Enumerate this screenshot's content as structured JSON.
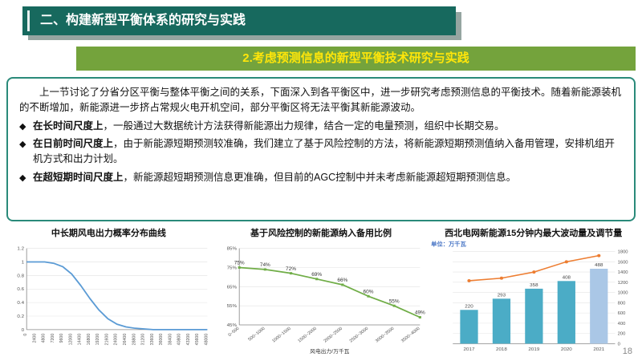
{
  "page": {
    "number": "18"
  },
  "header": {
    "title": "二、构建新型平衡体系的研究与实践"
  },
  "banner": {
    "title": "2.考虑预测信息的新型平衡技术研究与实践"
  },
  "content": {
    "bullet_marker": "◆",
    "intro": "上一节讨论了分省分区平衡与整体平衡之间的关系，下面深入到各平衡区中，进一步研究考虑预测信息的平衡技术。随着新能源装机的不断增加，新能源进一步挤占常规火电开机空间，部分平衡区将无法平衡其新能源波动。",
    "bullets": [
      {
        "bold": "在长时间尺度上",
        "rest": "，一般通过大数据统计方法获得新能源出力规律，结合一定的电量预测，组织中长期交易。"
      },
      {
        "bold": "在日前时间尺度上",
        "rest": "，由于新能源短期预测较准确，我们建立了基于风险控制的方法，将新能源短期预测值纳入备用管理，安排机组开机方式和出力计划。"
      },
      {
        "bold": "在超短期时间尺度上",
        "rest": "，新能源超短期预测信息更准确，但目前的AGC控制中并未考虑新能源超短期预测信息。"
      }
    ]
  },
  "theme": {
    "header_bg": "#17695e",
    "shadow": "#95a5a1",
    "banner_bg": "#74a33c",
    "banner_text": "#ffe60a",
    "box_border": "#2a8a7a",
    "page_bg": "#ffffff"
  },
  "chart_data": [
    {
      "type": "line",
      "title": "中长期风电出力概率分布曲线",
      "x": [
        0,
        2400,
        4800,
        7200,
        9600,
        12000,
        14400,
        16800,
        19200,
        21600,
        24000,
        26400,
        28800,
        31200,
        33600,
        36000,
        38400,
        40800,
        43200,
        45600,
        48000
      ],
      "values": [
        1,
        1,
        1,
        0.98,
        0.93,
        0.82,
        0.65,
        0.46,
        0.29,
        0.16,
        0.08,
        0.04,
        0.02,
        0.01,
        0,
        0,
        0,
        0,
        0,
        0,
        0
      ],
      "ylim": [
        0,
        1.2
      ],
      "yticks": [
        "0",
        "0.2",
        "0.4",
        "0.6",
        "0.8",
        "1",
        "1.2"
      ],
      "x_tick_rotation": 90,
      "grid": true,
      "line_color": "#5b9bd5"
    },
    {
      "type": "line",
      "title": "基于风险控制的新能源纳入备用比例",
      "categories": [
        "0~500",
        "500~1000",
        "1000~1500",
        "1500~2000",
        "2000~2500",
        "2500~3000",
        "3000~3500",
        "3500~4000"
      ],
      "values": [
        75,
        74,
        72,
        69,
        66,
        60,
        55,
        49
      ],
      "data_labels": [
        "75%",
        "74%",
        "72%",
        "69%",
        "66%",
        "60%",
        "55%",
        "49%"
      ],
      "xlabel": "风电出力/万千瓦",
      "ylim": [
        45,
        85
      ],
      "yticks": [
        "45%",
        "55%",
        "65%",
        "75%",
        "85%"
      ],
      "x_tick_rotation": 40,
      "grid": true,
      "show_markers": true,
      "line_color": "#70ad47"
    },
    {
      "type": "combo",
      "title": "西北电网新能源15分钟内最大波动量及调节量",
      "unit_label": "单位：万千瓦",
      "unit_color": "#4472c4",
      "categories": [
        "2017",
        "2018",
        "2019",
        "2020",
        "2021"
      ],
      "bars": {
        "values": [
          220,
          293,
          358,
          408,
          488
        ],
        "labels": [
          "220",
          "293",
          "358",
          "408",
          "488"
        ],
        "colors": [
          "#4bacc6",
          "#4bacc6",
          "#4bacc6",
          "#4bacc6",
          "#aac7e6"
        ]
      },
      "line": {
        "values": [
          1230,
          1280,
          1400,
          1600,
          1720
        ],
        "color": "#ed7d31"
      },
      "left_ylim": [
        0,
        600
      ],
      "right_ylim": [
        0,
        1800
      ],
      "right_yticks": [
        0,
        200,
        400,
        600,
        800,
        1000,
        1200,
        1400,
        1600,
        1800
      ],
      "grid": true
    }
  ]
}
